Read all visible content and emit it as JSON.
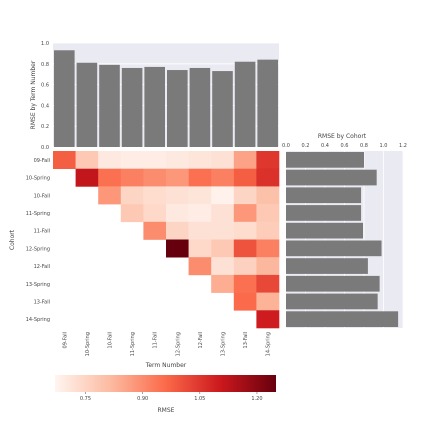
{
  "chart_data": [
    {
      "type": "bar",
      "ylabel": "RMSE by Term Number",
      "ylim": [
        0.0,
        1.0
      ],
      "yticks": [
        "0.0",
        "0.2",
        "0.4",
        "0.6",
        "0.8",
        "1.0"
      ],
      "categories": [
        "09-Fall",
        "10-Spring",
        "10-Fall",
        "11-Spring",
        "11-Fall",
        "12-Spring",
        "12-Fall",
        "13-Spring",
        "13-Fall",
        "14-Spring"
      ],
      "values": [
        0.93,
        0.81,
        0.79,
        0.76,
        0.77,
        0.74,
        0.76,
        0.73,
        0.82,
        0.84
      ],
      "bar_color": "#7a7a7a",
      "grid": true
    },
    {
      "type": "heatmap",
      "xlabel": "Term Number",
      "ylabel": "Cohort",
      "x_categories": [
        "09-Fall",
        "10-Spring",
        "10-Fall",
        "11-Spring",
        "11-Fall",
        "12-Spring",
        "12-Fall",
        "13-Spring",
        "13-Fall",
        "14-Spring"
      ],
      "y_categories": [
        "09-Fall",
        "10-Spring",
        "10-Fall",
        "11-Spring",
        "11-Fall",
        "12-Spring",
        "12-Fall",
        "13-Spring",
        "13-Fall",
        "14-Spring"
      ],
      "values": [
        [
          0.98,
          0.78,
          0.7,
          0.69,
          0.69,
          0.7,
          0.71,
          0.72,
          0.86,
          1.05
        ],
        [
          null,
          1.12,
          0.95,
          0.92,
          0.9,
          0.88,
          0.95,
          0.92,
          0.98,
          1.06
        ],
        [
          null,
          null,
          0.88,
          0.75,
          0.73,
          0.72,
          0.71,
          0.68,
          0.75,
          0.8
        ],
        [
          null,
          null,
          null,
          0.78,
          0.74,
          0.7,
          0.69,
          0.72,
          0.88,
          0.78
        ],
        [
          null,
          null,
          null,
          null,
          0.9,
          0.75,
          0.72,
          0.72,
          0.73,
          0.77
        ],
        [
          null,
          null,
          null,
          null,
          null,
          1.25,
          0.74,
          0.78,
          1.0,
          0.92
        ],
        [
          null,
          null,
          null,
          null,
          null,
          null,
          0.9,
          0.72,
          0.76,
          0.82
        ],
        [
          null,
          null,
          null,
          null,
          null,
          null,
          null,
          0.84,
          0.95,
          1.02
        ],
        [
          null,
          null,
          null,
          null,
          null,
          null,
          null,
          null,
          0.96,
          0.83
        ],
        [
          null,
          null,
          null,
          null,
          null,
          null,
          null,
          null,
          null,
          1.1
        ]
      ],
      "colormap": [
        "#fff5f0",
        "#fcbba1",
        "#fb6a4a",
        "#cb181d",
        "#67000d"
      ],
      "vmin": 0.67,
      "vmax": 1.25
    },
    {
      "type": "bar",
      "orientation": "horizontal",
      "title": "RMSE by Cohort",
      "xlim": [
        0.0,
        1.2
      ],
      "xticks": [
        "0.0",
        "0.2",
        "0.4",
        "0.6",
        "0.8",
        "1.0",
        "1.2"
      ],
      "categories": [
        "09-Fall",
        "10-Spring",
        "10-Fall",
        "11-Spring",
        "11-Fall",
        "12-Spring",
        "12-Fall",
        "13-Spring",
        "13-Fall",
        "14-Spring"
      ],
      "values": [
        0.8,
        0.93,
        0.77,
        0.77,
        0.79,
        0.98,
        0.84,
        0.96,
        0.94,
        1.15
      ],
      "bar_color": "#7a7a7a",
      "grid": true
    },
    {
      "type": "colorbar",
      "label": "RMSE",
      "ticks": [
        "0.75",
        "0.90",
        "1.05",
        "1.20"
      ],
      "tick_values": [
        0.75,
        0.9,
        1.05,
        1.2
      ],
      "vmin": 0.67,
      "vmax": 1.25
    }
  ]
}
